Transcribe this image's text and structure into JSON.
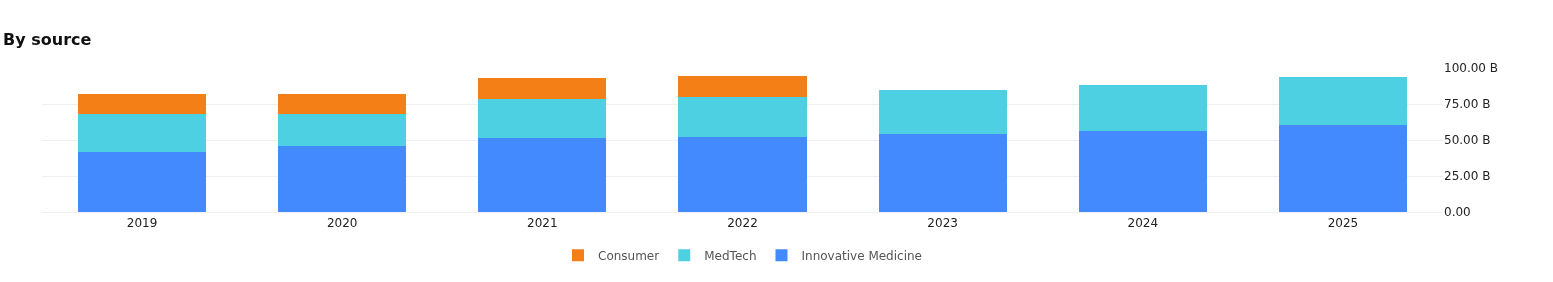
{
  "chart_data": {
    "type": "bar",
    "title": "By source",
    "stacked": true,
    "categories": [
      "2019",
      "2020",
      "2021",
      "2022",
      "2023",
      "2024",
      "2025"
    ],
    "series": [
      {
        "name": "Innovative Medicine",
        "color": "#448aff",
        "values": [
          42.0,
          45.5,
          51.7,
          52.4,
          54.5,
          56.6,
          60.1
        ]
      },
      {
        "name": "MedTech",
        "color": "#4dd0e1",
        "values": [
          25.8,
          22.3,
          26.6,
          27.3,
          30.1,
          31.5,
          33.6
        ]
      },
      {
        "name": "Consumer",
        "color": "#f57f17",
        "values": [
          14.0,
          14.0,
          14.7,
          14.7,
          null,
          null,
          null
        ]
      }
    ],
    "ylim": [
      0,
      100
    ],
    "yticks": [
      {
        "value": 0,
        "label": "0.00"
      },
      {
        "value": 25,
        "label": "25.00 B"
      },
      {
        "value": 50,
        "label": "50.00 B"
      },
      {
        "value": 75,
        "label": "75.00 B"
      },
      {
        "value": 100,
        "label": "100.00 B"
      }
    ],
    "grid": "y",
    "legend": "bottom"
  }
}
